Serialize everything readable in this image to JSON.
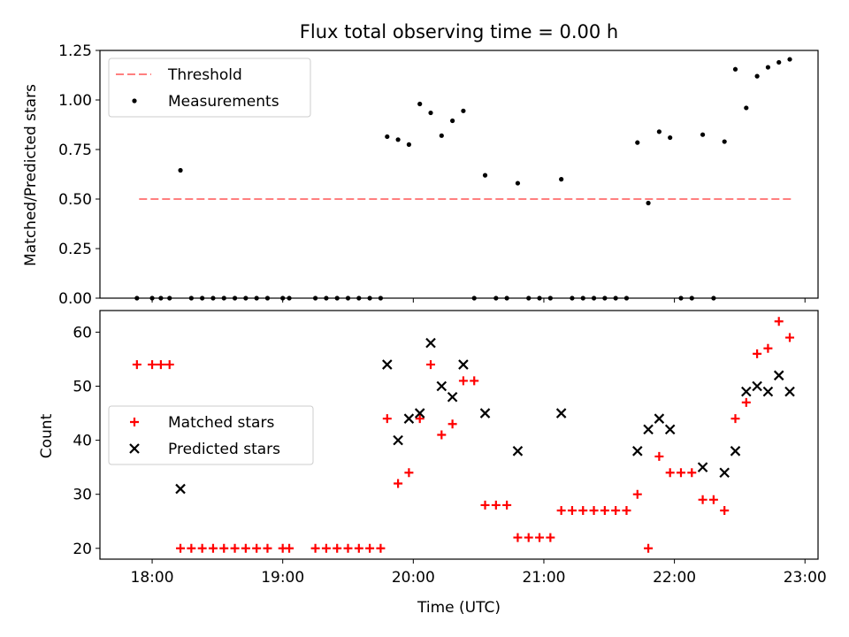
{
  "figure": {
    "title": "Flux total observing time = 0.00 h",
    "xlabel": "Time (UTC)"
  },
  "colors": {
    "threshold": "#ff7f7f",
    "measurements": "#000000",
    "matched": "#ff0000",
    "predicted": "#000000"
  },
  "chart_data": [
    {
      "type": "scatter",
      "ylabel": "Matched/Predicted stars",
      "ylim": [
        0,
        1.25
      ],
      "yticks": [
        "0.00",
        "0.25",
        "0.50",
        "0.75",
        "1.00",
        "1.25"
      ],
      "xlim": [
        "17:36",
        "23:06"
      ],
      "xticks": [
        "18:00",
        "19:00",
        "20:00",
        "21:00",
        "22:00",
        "23:00"
      ],
      "show_xticklabels": false,
      "legend": {
        "position": "upper-left",
        "entries": [
          "Threshold",
          "Measurements"
        ]
      },
      "threshold": {
        "name": "Threshold",
        "value": 0.5,
        "x_start": "17:54",
        "x_end": "22:54"
      },
      "series": [
        {
          "name": "Measurements",
          "marker": "dot",
          "points": [
            [
              "17:53",
              0.0
            ],
            [
              "18:00",
              0.0
            ],
            [
              "18:04",
              0.0
            ],
            [
              "18:08",
              0.0
            ],
            [
              "18:13",
              0.645
            ],
            [
              "18:18",
              0.0
            ],
            [
              "18:23",
              0.0
            ],
            [
              "18:28",
              0.0
            ],
            [
              "18:33",
              0.0
            ],
            [
              "18:38",
              0.0
            ],
            [
              "18:43",
              0.0
            ],
            [
              "18:48",
              0.0
            ],
            [
              "18:53",
              0.0
            ],
            [
              "19:00",
              0.0
            ],
            [
              "19:03",
              0.0
            ],
            [
              "19:15",
              0.0
            ],
            [
              "19:20",
              0.0
            ],
            [
              "19:25",
              0.0
            ],
            [
              "19:30",
              0.0
            ],
            [
              "19:35",
              0.0
            ],
            [
              "19:40",
              0.0
            ],
            [
              "19:45",
              0.0
            ],
            [
              "19:48",
              0.815
            ],
            [
              "19:53",
              0.8
            ],
            [
              "19:58",
              0.775
            ],
            [
              "20:03",
              0.98
            ],
            [
              "20:08",
              0.935
            ],
            [
              "20:13",
              0.82
            ],
            [
              "20:18",
              0.895
            ],
            [
              "20:23",
              0.945
            ],
            [
              "20:28",
              0.0
            ],
            [
              "20:33",
              0.62
            ],
            [
              "20:38",
              0.0
            ],
            [
              "20:43",
              0.0
            ],
            [
              "20:48",
              0.58
            ],
            [
              "20:53",
              0.0
            ],
            [
              "20:58",
              0.0
            ],
            [
              "21:03",
              0.0
            ],
            [
              "21:08",
              0.6
            ],
            [
              "21:13",
              0.0
            ],
            [
              "21:18",
              0.0
            ],
            [
              "21:23",
              0.0
            ],
            [
              "21:28",
              0.0
            ],
            [
              "21:33",
              0.0
            ],
            [
              "21:38",
              0.0
            ],
            [
              "21:43",
              0.785
            ],
            [
              "21:48",
              0.48
            ],
            [
              "21:53",
              0.84
            ],
            [
              "21:58",
              0.81
            ],
            [
              "22:03",
              0.0
            ],
            [
              "22:08",
              0.0
            ],
            [
              "22:13",
              0.825
            ],
            [
              "22:18",
              0.0
            ],
            [
              "22:23",
              0.79
            ],
            [
              "22:28",
              1.155
            ],
            [
              "22:33",
              0.96
            ],
            [
              "22:38",
              1.12
            ],
            [
              "22:43",
              1.165
            ],
            [
              "22:48",
              1.19
            ],
            [
              "22:53",
              1.205
            ]
          ]
        }
      ]
    },
    {
      "type": "scatter",
      "ylabel": "Count",
      "ylim": [
        18,
        64
      ],
      "yticks": [
        "20",
        "30",
        "40",
        "50",
        "60"
      ],
      "xlim": [
        "17:36",
        "23:06"
      ],
      "xticks": [
        "18:00",
        "19:00",
        "20:00",
        "21:00",
        "22:00",
        "23:00"
      ],
      "show_xticklabels": true,
      "legend": {
        "position": "center-left",
        "entries": [
          "Matched stars",
          "Predicted stars"
        ]
      },
      "series": [
        {
          "name": "Matched stars",
          "marker": "plus",
          "points": [
            [
              "17:53",
              54
            ],
            [
              "18:00",
              54
            ],
            [
              "18:04",
              54
            ],
            [
              "18:08",
              54
            ],
            [
              "18:13",
              20
            ],
            [
              "18:18",
              20
            ],
            [
              "18:23",
              20
            ],
            [
              "18:28",
              20
            ],
            [
              "18:33",
              20
            ],
            [
              "18:38",
              20
            ],
            [
              "18:43",
              20
            ],
            [
              "18:48",
              20
            ],
            [
              "18:53",
              20
            ],
            [
              "19:00",
              20
            ],
            [
              "19:03",
              20
            ],
            [
              "19:15",
              20
            ],
            [
              "19:20",
              20
            ],
            [
              "19:25",
              20
            ],
            [
              "19:30",
              20
            ],
            [
              "19:35",
              20
            ],
            [
              "19:40",
              20
            ],
            [
              "19:45",
              20
            ],
            [
              "19:48",
              44
            ],
            [
              "19:53",
              32
            ],
            [
              "19:58",
              34
            ],
            [
              "20:03",
              44
            ],
            [
              "20:08",
              54
            ],
            [
              "20:13",
              41
            ],
            [
              "20:18",
              43
            ],
            [
              "20:23",
              51
            ],
            [
              "20:28",
              51
            ],
            [
              "20:33",
              28
            ],
            [
              "20:38",
              28
            ],
            [
              "20:43",
              28
            ],
            [
              "20:48",
              22
            ],
            [
              "20:53",
              22
            ],
            [
              "20:58",
              22
            ],
            [
              "21:03",
              22
            ],
            [
              "21:08",
              27
            ],
            [
              "21:13",
              27
            ],
            [
              "21:18",
              27
            ],
            [
              "21:23",
              27
            ],
            [
              "21:28",
              27
            ],
            [
              "21:33",
              27
            ],
            [
              "21:38",
              27
            ],
            [
              "21:43",
              30
            ],
            [
              "21:48",
              20
            ],
            [
              "21:53",
              37
            ],
            [
              "21:58",
              34
            ],
            [
              "22:03",
              34
            ],
            [
              "22:08",
              34
            ],
            [
              "22:13",
              29
            ],
            [
              "22:18",
              29
            ],
            [
              "22:23",
              27
            ],
            [
              "22:28",
              44
            ],
            [
              "22:33",
              47
            ],
            [
              "22:38",
              56
            ],
            [
              "22:43",
              57
            ],
            [
              "22:48",
              62
            ],
            [
              "22:53",
              59
            ]
          ]
        },
        {
          "name": "Predicted stars",
          "marker": "x",
          "points": [
            [
              "18:13",
              31
            ],
            [
              "19:48",
              54
            ],
            [
              "19:53",
              40
            ],
            [
              "19:58",
              44
            ],
            [
              "20:03",
              45
            ],
            [
              "20:08",
              58
            ],
            [
              "20:13",
              50
            ],
            [
              "20:18",
              48
            ],
            [
              "20:23",
              54
            ],
            [
              "20:33",
              45
            ],
            [
              "20:48",
              38
            ],
            [
              "21:08",
              45
            ],
            [
              "21:43",
              38
            ],
            [
              "21:48",
              42
            ],
            [
              "21:53",
              44
            ],
            [
              "21:58",
              42
            ],
            [
              "22:13",
              35
            ],
            [
              "22:23",
              34
            ],
            [
              "22:28",
              38
            ],
            [
              "22:33",
              49
            ],
            [
              "22:38",
              50
            ],
            [
              "22:43",
              49
            ],
            [
              "22:48",
              52
            ],
            [
              "22:53",
              49
            ]
          ]
        }
      ]
    }
  ]
}
